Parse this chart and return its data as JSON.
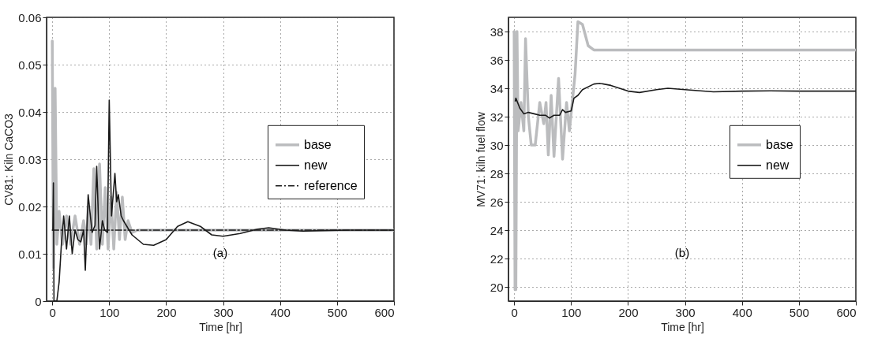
{
  "chart_data": [
    {
      "type": "line",
      "xlabel": "Time [hr]",
      "ylabel": "CV81: Kiln CaCO3",
      "annotations": [
        "(a)"
      ],
      "xlim": [
        -10,
        600
      ],
      "ylim": [
        0,
        0.06
      ],
      "xticks": [
        0,
        100,
        200,
        300,
        400,
        500,
        600
      ],
      "yticks": [
        {
          "value": 0,
          "label": "0"
        },
        0.01,
        0.02,
        0.03,
        0.04,
        0.05,
        0.06
      ],
      "grid": true,
      "legend": "right",
      "series": [
        {
          "name": "base",
          "color": "#bbbcbe",
          "x": [
            0,
            2,
            5,
            8,
            12,
            18,
            25,
            32,
            40,
            48,
            55,
            60,
            63,
            68,
            73,
            78,
            83,
            88,
            93,
            98,
            103,
            108,
            113,
            118,
            123,
            128,
            133,
            140,
            150,
            600
          ],
          "values": [
            0.055,
            0.007,
            0.045,
            0.012,
            0.019,
            0.012,
            0.018,
            0.012,
            0.018,
            0.012,
            0.017,
            0.012,
            0.02,
            0.012,
            0.028,
            0.011,
            0.029,
            0.012,
            0.024,
            0.011,
            0.022,
            0.011,
            0.023,
            0.013,
            0.022,
            0.013,
            0.017,
            0.0145,
            0.015,
            0.015
          ]
        },
        {
          "name": "new",
          "color": "#1a1a1a",
          "x": [
            1,
            2,
            3,
            8,
            12,
            16,
            20,
            25,
            30,
            35,
            40,
            45,
            50,
            55,
            58,
            63,
            70,
            75,
            78,
            83,
            88,
            92,
            97,
            100,
            104,
            110,
            113,
            116,
            121,
            125,
            140,
            160,
            178,
            200,
            220,
            238,
            260,
            280,
            300,
            330,
            360,
            380,
            410,
            440,
            470,
            520,
            600
          ],
          "values": [
            0.015,
            0.025,
            0,
            0,
            0.004,
            0.012,
            0.018,
            0.011,
            0.018,
            0.01,
            0.015,
            0.013,
            0.0125,
            0.015,
            0.0065,
            0.0225,
            0.0145,
            0.016,
            0.0285,
            0.011,
            0.017,
            0.015,
            0.0145,
            0.0425,
            0.018,
            0.027,
            0.021,
            0.0225,
            0.018,
            0.017,
            0.014,
            0.012,
            0.0118,
            0.013,
            0.0158,
            0.0168,
            0.0158,
            0.014,
            0.0137,
            0.0143,
            0.0152,
            0.0155,
            0.015,
            0.0148,
            0.0149,
            0.015,
            0.015
          ]
        },
        {
          "name": "reference",
          "color": "#1a1a1a",
          "line_style": "dashed",
          "x": [
            0,
            600
          ],
          "values": [
            0.015,
            0.015
          ]
        }
      ]
    },
    {
      "type": "line",
      "xlabel": "Time [hr]",
      "ylabel": "MV71: kiln fuel flow",
      "annotations": [
        "(b)"
      ],
      "xlim": [
        -10,
        600
      ],
      "ylim": [
        19,
        39
      ],
      "xticks": [
        0,
        100,
        200,
        300,
        400,
        500,
        600
      ],
      "yticks": [
        20,
        22,
        24,
        26,
        28,
        30,
        32,
        34,
        36,
        38
      ],
      "grid": true,
      "legend": "right",
      "series": [
        {
          "name": "base",
          "color": "#bbbcbe",
          "x": [
            0,
            1.5,
            3,
            5,
            7,
            12,
            17,
            20,
            25,
            30,
            37,
            45,
            52,
            56,
            60,
            65,
            70,
            78,
            85,
            92,
            97,
            102,
            107,
            112,
            120,
            130,
            140,
            600
          ],
          "values": [
            38,
            19.8,
            19.8,
            38,
            31,
            33,
            31,
            37.5,
            32,
            30,
            30,
            33,
            31.5,
            33,
            29.3,
            33.5,
            29.2,
            34.7,
            29,
            33,
            31,
            33,
            35,
            38.7,
            38.5,
            37,
            36.7,
            36.7
          ]
        },
        {
          "name": "new",
          "color": "#1a1a1a",
          "x": [
            2,
            3,
            10,
            17,
            25,
            35,
            45,
            55,
            62,
            70,
            80,
            85,
            90,
            100,
            105,
            112,
            120,
            140,
            150,
            170,
            200,
            220,
            250,
            270,
            300,
            350,
            400,
            450,
            500,
            600
          ],
          "values": [
            33.1,
            33.3,
            32.6,
            32.2,
            32.3,
            32.2,
            32.1,
            32.1,
            31.9,
            32.1,
            32.1,
            32.5,
            32.3,
            32.4,
            33.3,
            33.5,
            33.9,
            34.3,
            34.35,
            34.2,
            33.8,
            33.7,
            33.9,
            34,
            33.9,
            33.75,
            33.8,
            33.82,
            33.8,
            33.8
          ]
        }
      ]
    }
  ]
}
